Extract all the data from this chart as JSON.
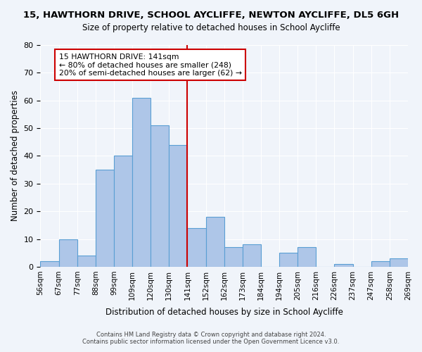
{
  "title": "15, HAWTHORN DRIVE, SCHOOL AYCLIFFE, NEWTON AYCLIFFE, DL5 6GH",
  "subtitle": "Size of property relative to detached houses in School Aycliffe",
  "xlabel": "Distribution of detached houses by size in School Aycliffe",
  "ylabel": "Number of detached properties",
  "bin_labels": [
    "56sqm",
    "67sqm",
    "77sqm",
    "88sqm",
    "99sqm",
    "109sqm",
    "120sqm",
    "130sqm",
    "141sqm",
    "152sqm",
    "162sqm",
    "173sqm",
    "184sqm",
    "194sqm",
    "205sqm",
    "216sqm",
    "226sqm",
    "237sqm",
    "247sqm",
    "258sqm",
    "269sqm"
  ],
  "bar_values": [
    2,
    10,
    4,
    35,
    40,
    61,
    51,
    44,
    14,
    18,
    7,
    8,
    0,
    5,
    7,
    0,
    1,
    0,
    2,
    3
  ],
  "bar_color": "#aec6e8",
  "bar_edge_color": "#5a9fd4",
  "vline_label_idx": 8,
  "vline_color": "#cc0000",
  "annotation_title": "15 HAWTHORN DRIVE: 141sqm",
  "annotation_line1": "← 80% of detached houses are smaller (248)",
  "annotation_line2": "20% of semi-detached houses are larger (62) →",
  "annotation_box_color": "#ffffff",
  "annotation_box_edge": "#cc0000",
  "ylim": [
    0,
    80
  ],
  "yticks": [
    0,
    10,
    20,
    30,
    40,
    50,
    60,
    70,
    80
  ],
  "footer1": "Contains HM Land Registry data © Crown copyright and database right 2024.",
  "footer2": "Contains public sector information licensed under the Open Government Licence v3.0.",
  "bg_color": "#f0f4fa"
}
